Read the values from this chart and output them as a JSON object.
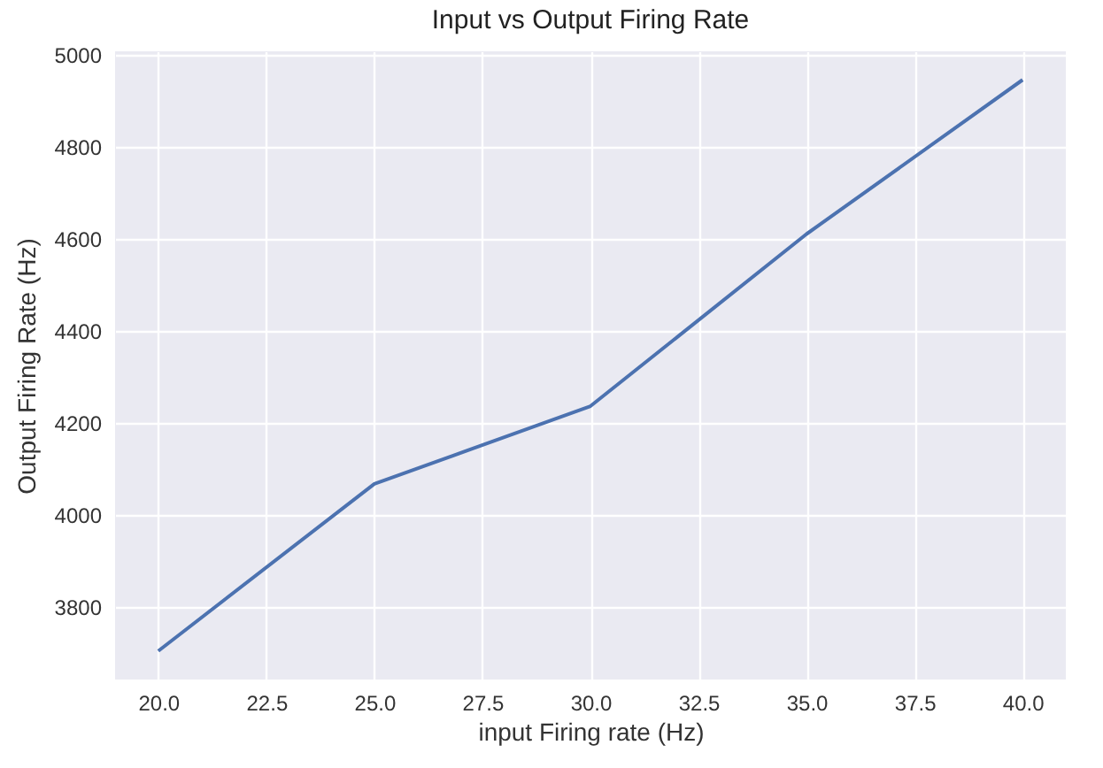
{
  "chart_data": {
    "type": "line",
    "title": "Input vs Output Firing Rate",
    "xlabel": "input Firing rate (Hz)",
    "ylabel": "Output Firing Rate (Hz)",
    "x": [
      20,
      25,
      30,
      35,
      40
    ],
    "series": [
      {
        "color": "#4c72b0",
        "values": [
          3705,
          4068,
          4237,
          4611,
          4946
        ]
      }
    ],
    "xlim": [
      19,
      41
    ],
    "xticks": [
      {
        "value": 20,
        "label": "20.0"
      },
      {
        "value": 22.5,
        "label": "22.5"
      },
      {
        "value": 25,
        "label": "25.0"
      },
      {
        "value": 27.5,
        "label": "27.5"
      },
      {
        "value": 30,
        "label": "30.0"
      },
      {
        "value": 32.5,
        "label": "32.5"
      },
      {
        "value": 35,
        "label": "35.0"
      },
      {
        "value": 37.5,
        "label": "37.5"
      },
      {
        "value": 40,
        "label": "40.0"
      }
    ],
    "ylim": [
      3643,
      5008
    ],
    "yticks": [
      3800,
      4000,
      4200,
      4400,
      4600,
      4800,
      5000
    ],
    "grid": true,
    "marker": "none",
    "line_style": "solid",
    "legend": false
  }
}
